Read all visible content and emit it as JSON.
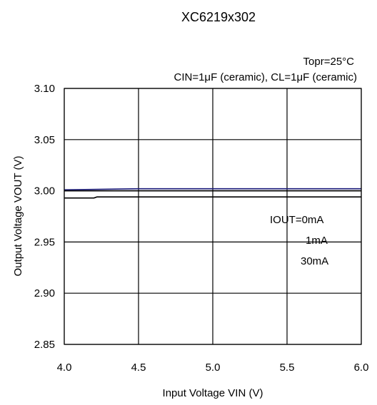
{
  "chart_data": {
    "type": "line",
    "title": "XC6219x302",
    "conditions": {
      "temperature": "Topr=25°C",
      "capacitors": "CIN=1μF (ceramic), CL=1μF (ceramic)"
    },
    "xlabel": "Input Voltage VIN (V)",
    "ylabel": "Output Voltage VOUT (V)",
    "xlim": [
      4.0,
      6.0
    ],
    "ylim": [
      2.85,
      3.1
    ],
    "x_ticks": [
      4.0,
      4.5,
      5.0,
      5.5,
      6.0
    ],
    "x_tick_labels": [
      "4.0",
      "4.5",
      "5.0",
      "5.5",
      "6.0"
    ],
    "y_ticks": [
      2.85,
      2.9,
      2.95,
      3.0,
      3.05,
      3.1
    ],
    "y_tick_labels": [
      "2.85",
      "2.90",
      "2.95",
      "3.00",
      "3.05",
      "3.10"
    ],
    "grid": true,
    "legend_annotation": [
      "IOUT=0mA",
      "1mA",
      "30mA"
    ],
    "series": [
      {
        "color": "#1a1a7a",
        "x": [
          4.0,
          4.5,
          5.0,
          5.5,
          6.0
        ],
        "y": [
          3.001,
          3.002,
          3.002,
          3.002,
          3.002
        ]
      },
      {
        "color": "#000000",
        "x": [
          4.0,
          4.5,
          5.0,
          5.5,
          6.0
        ],
        "y": [
          3.0,
          3.0,
          3.0,
          3.0,
          3.0
        ]
      },
      {
        "color": "#000000",
        "x": [
          4.0,
          4.2,
          4.22,
          4.5,
          5.0,
          5.5,
          6.0
        ],
        "y": [
          2.993,
          2.993,
          2.994,
          2.994,
          2.994,
          2.994,
          2.994
        ]
      }
    ]
  }
}
